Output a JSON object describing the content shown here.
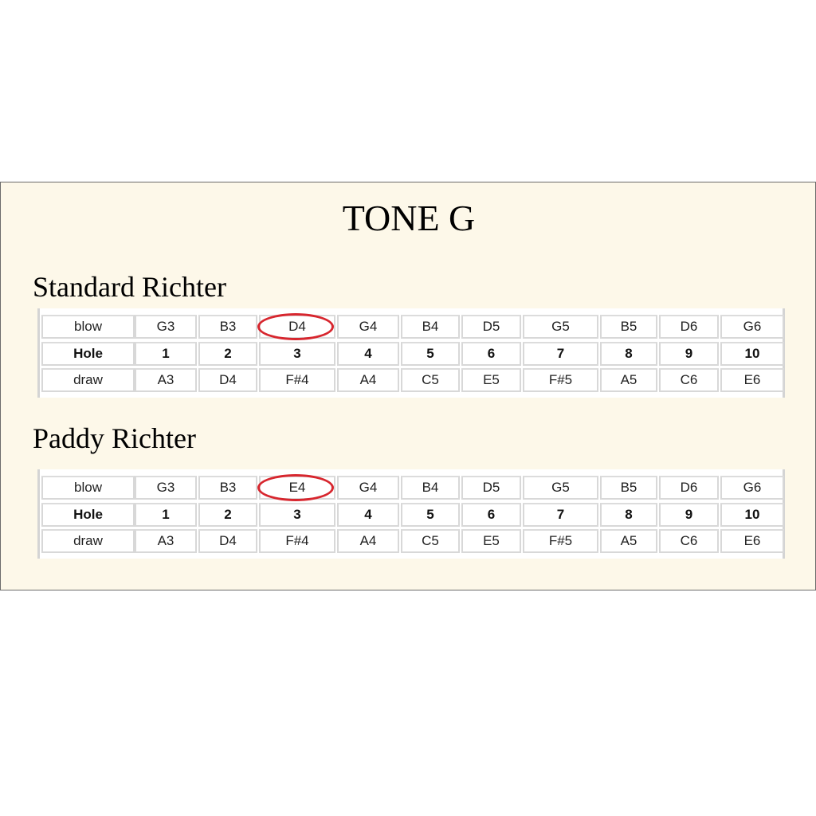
{
  "title": "TONE G",
  "tables": [
    {
      "heading": "Standard Richter",
      "rows": [
        [
          "blow",
          "G3",
          "B3",
          "D4",
          "G4",
          "B4",
          "D5",
          "G5",
          "B5",
          "D6",
          "G6"
        ],
        [
          "Hole",
          "1",
          "2",
          "3",
          "4",
          "5",
          "6",
          "7",
          "8",
          "9",
          "10"
        ],
        [
          "draw",
          "A3",
          "D4",
          "F#4",
          "A4",
          "C5",
          "E5",
          "F#5",
          "A5",
          "C6",
          "E6"
        ]
      ],
      "highlight": {
        "row": 0,
        "col": 3,
        "color": "#d7262e"
      }
    },
    {
      "heading": "Paddy Richter",
      "rows": [
        [
          "blow",
          "G3",
          "B3",
          "E4",
          "G4",
          "B4",
          "D5",
          "G5",
          "B5",
          "D6",
          "G6"
        ],
        [
          "Hole",
          "1",
          "2",
          "3",
          "4",
          "5",
          "6",
          "7",
          "8",
          "9",
          "10"
        ],
        [
          "draw",
          "A3",
          "D4",
          "F#4",
          "A4",
          "C5",
          "E5",
          "F#5",
          "A5",
          "C6",
          "E6"
        ]
      ],
      "highlight": {
        "row": 0,
        "col": 3,
        "color": "#d7262e"
      }
    }
  ]
}
